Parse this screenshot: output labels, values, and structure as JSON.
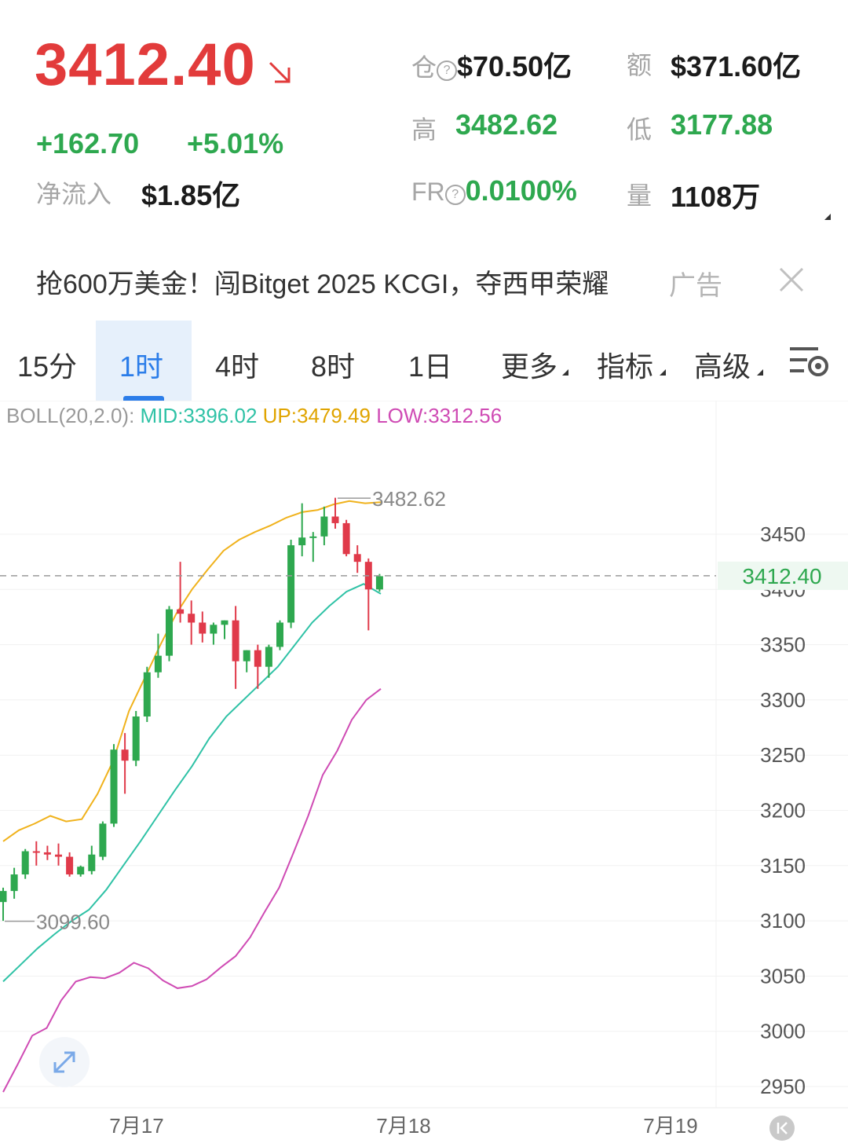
{
  "ticker": {
    "price": "3412.40",
    "change": "+162.70",
    "change_pct": "+5.01%",
    "net_inflow_label": "净流入",
    "net_inflow_value": "$1.85亿",
    "oi_label": "仓",
    "oi_value": "$70.50亿",
    "turnover_label": "额",
    "turnover_value": "$371.60亿",
    "high_label": "高",
    "high_value": "3482.62",
    "low_label": "低",
    "low_value": "3177.88",
    "fr_label": "FR",
    "fr_value": "0.0100%",
    "volume_label": "量",
    "volume_value": "1108万",
    "help_glyph": "?"
  },
  "ad": {
    "text": "抢600万美金！闯Bitget 2025 KCGI，夺西甲荣耀",
    "tag": "广告"
  },
  "tabs": [
    {
      "label": "15分"
    },
    {
      "label": "1时"
    },
    {
      "label": "4时"
    },
    {
      "label": "8时"
    },
    {
      "label": "1日"
    },
    {
      "label": "更多"
    },
    {
      "label": "指标"
    },
    {
      "label": "高级"
    }
  ],
  "indicator": {
    "name": "BOLL(20,2.0):",
    "mid": "MID:3396.02",
    "up": "UP:3479.49",
    "low": "LOW:3312.56"
  },
  "colors": {
    "up": "#2ea84f",
    "down": "#e03a4a",
    "mid_line": "#2fc2a6",
    "up_line": "#f0b21c",
    "low_line": "#cf4bb4",
    "price_red": "#e23b3b",
    "tab_active": "#2b7de9"
  },
  "chart_data": {
    "type": "candlestick",
    "x_labels": [
      "7月17",
      "7月18",
      "7月19"
    ],
    "yticks": [
      3450,
      3400,
      3350,
      3300,
      3250,
      3200,
      3150,
      3100,
      3050,
      3000,
      2950
    ],
    "ylim": [
      2950,
      3450
    ],
    "current_price": 3412.4,
    "current_price_label": "3412.40",
    "max_label": "3482.62",
    "min_label": "3099.60",
    "candles": [
      {
        "o": 3117,
        "h": 3130,
        "l": 3100,
        "c": 3127
      },
      {
        "o": 3127,
        "h": 3148,
        "l": 3120,
        "c": 3142
      },
      {
        "o": 3142,
        "h": 3165,
        "l": 3138,
        "c": 3163
      },
      {
        "o": 3163,
        "h": 3172,
        "l": 3150,
        "c": 3162
      },
      {
        "o": 3162,
        "h": 3168,
        "l": 3155,
        "c": 3160
      },
      {
        "o": 3160,
        "h": 3170,
        "l": 3150,
        "c": 3158
      },
      {
        "o": 3158,
        "h": 3162,
        "l": 3140,
        "c": 3142
      },
      {
        "o": 3142,
        "h": 3150,
        "l": 3140,
        "c": 3149
      },
      {
        "o": 3145,
        "h": 3168,
        "l": 3142,
        "c": 3160
      },
      {
        "o": 3158,
        "h": 3190,
        "l": 3155,
        "c": 3188
      },
      {
        "o": 3188,
        "h": 3260,
        "l": 3185,
        "c": 3255
      },
      {
        "o": 3255,
        "h": 3270,
        "l": 3215,
        "c": 3245
      },
      {
        "o": 3245,
        "h": 3290,
        "l": 3240,
        "c": 3285
      },
      {
        "o": 3285,
        "h": 3330,
        "l": 3280,
        "c": 3325
      },
      {
        "o": 3325,
        "h": 3360,
        "l": 3320,
        "c": 3340
      },
      {
        "o": 3340,
        "h": 3385,
        "l": 3335,
        "c": 3382
      },
      {
        "o": 3382,
        "h": 3425,
        "l": 3370,
        "c": 3378
      },
      {
        "o": 3378,
        "h": 3390,
        "l": 3350,
        "c": 3370
      },
      {
        "o": 3370,
        "h": 3380,
        "l": 3352,
        "c": 3360
      },
      {
        "o": 3360,
        "h": 3370,
        "l": 3350,
        "c": 3368
      },
      {
        "o": 3368,
        "h": 3372,
        "l": 3355,
        "c": 3372
      },
      {
        "o": 3372,
        "h": 3385,
        "l": 3310,
        "c": 3335
      },
      {
        "o": 3335,
        "h": 3345,
        "l": 3325,
        "c": 3345
      },
      {
        "o": 3345,
        "h": 3350,
        "l": 3310,
        "c": 3330
      },
      {
        "o": 3330,
        "h": 3350,
        "l": 3320,
        "c": 3348
      },
      {
        "o": 3348,
        "h": 3372,
        "l": 3345,
        "c": 3370
      },
      {
        "o": 3370,
        "h": 3445,
        "l": 3365,
        "c": 3440
      },
      {
        "o": 3440,
        "h": 3478,
        "l": 3430,
        "c": 3447
      },
      {
        "o": 3447,
        "h": 3452,
        "l": 3425,
        "c": 3448
      },
      {
        "o": 3448,
        "h": 3475,
        "l": 3440,
        "c": 3466
      },
      {
        "o": 3466,
        "h": 3483,
        "l": 3455,
        "c": 3460
      },
      {
        "o": 3460,
        "h": 3463,
        "l": 3430,
        "c": 3432
      },
      {
        "o": 3432,
        "h": 3440,
        "l": 3415,
        "c": 3425
      },
      {
        "o": 3425,
        "h": 3428,
        "l": 3363,
        "c": 3400
      },
      {
        "o": 3400,
        "h": 3414,
        "l": 3398,
        "c": 3412
      }
    ],
    "boll_up": [
      3172,
      3182,
      3188,
      3195,
      3190,
      3192,
      3215,
      3245,
      3290,
      3320,
      3350,
      3378,
      3400,
      3418,
      3435,
      3445,
      3452,
      3458,
      3465,
      3470,
      3472,
      3477,
      3480,
      3478,
      3479
    ],
    "boll_mid": [
      3045,
      3060,
      3075,
      3088,
      3100,
      3110,
      3128,
      3150,
      3172,
      3195,
      3218,
      3240,
      3265,
      3285,
      3300,
      3315,
      3330,
      3350,
      3370,
      3385,
      3398,
      3405,
      3396
    ],
    "boll_low": [
      2945,
      2970,
      2996,
      3003,
      3028,
      3045,
      3049,
      3048,
      3053,
      3062,
      3057,
      3046,
      3039,
      3041,
      3047,
      3058,
      3068,
      3085,
      3108,
      3130,
      3162,
      3195,
      3232,
      3254,
      3282,
      3300,
      3310
    ]
  }
}
